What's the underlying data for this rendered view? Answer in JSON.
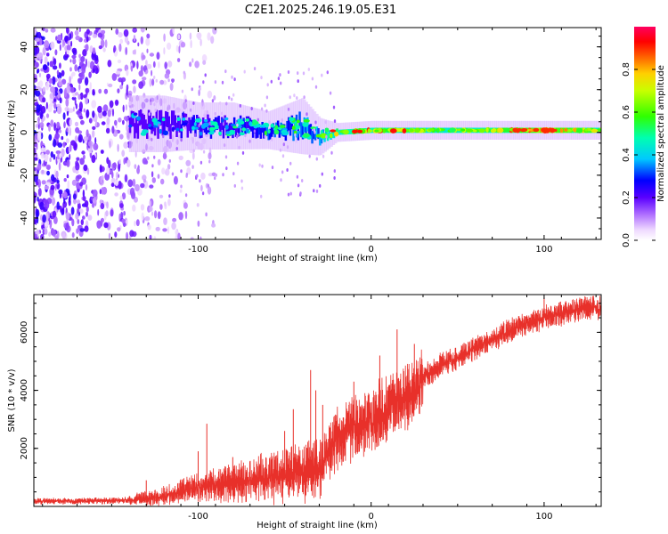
{
  "title": "C2E1.2025.246.19.05.E31",
  "chart_data": [
    {
      "type": "heatmap",
      "name": "spectrogram",
      "xlabel": "Height of straight line (km)",
      "ylabel": "Frequency (Hz)",
      "xlim": [
        -195,
        133
      ],
      "ylim": [
        -50,
        49
      ],
      "xticks": [
        -100,
        0,
        100
      ],
      "yticks": [
        -40,
        -20,
        0,
        20,
        40
      ],
      "noise_floor_region": [
        -195,
        -130
      ],
      "signal_band": [
        {
          "x": -140,
          "center_hz": 4,
          "halfwidth_hz": 6,
          "amp": 0.25
        },
        {
          "x": -120,
          "center_hz": 4,
          "halfwidth_hz": 6,
          "amp": 0.3
        },
        {
          "x": -100,
          "center_hz": 3,
          "halfwidth_hz": 5,
          "amp": 0.32
        },
        {
          "x": -80,
          "center_hz": 3,
          "halfwidth_hz": 5,
          "amp": 0.35
        },
        {
          "x": -60,
          "center_hz": 1,
          "halfwidth_hz": 4,
          "amp": 0.4
        },
        {
          "x": -40,
          "center_hz": 3,
          "halfwidth_hz": 6,
          "amp": 0.42
        },
        {
          "x": -30,
          "center_hz": -2,
          "halfwidth_hz": 4,
          "amp": 0.45
        },
        {
          "x": -20,
          "center_hz": 0,
          "halfwidth_hz": 2,
          "amp": 0.6
        },
        {
          "x": 0,
          "center_hz": 1,
          "halfwidth_hz": 2,
          "amp": 0.6
        },
        {
          "x": 40,
          "center_hz": 1,
          "halfwidth_hz": 2,
          "amp": 0.55
        },
        {
          "x": 80,
          "center_hz": 1,
          "halfwidth_hz": 2,
          "amp": 0.6
        },
        {
          "x": 100,
          "center_hz": 1,
          "halfwidth_hz": 2,
          "amp": 0.75
        },
        {
          "x": 133,
          "center_hz": 1,
          "halfwidth_hz": 2,
          "amp": 0.55
        }
      ],
      "colorbar": {
        "label": "Normalized spectral amplitude",
        "range": [
          0,
          1
        ],
        "ticks": [
          "0.0",
          "0.2",
          "0.4",
          "0.6",
          "0.8"
        ],
        "tick_values": [
          0.0,
          0.2,
          0.4,
          0.6,
          0.8
        ]
      }
    },
    {
      "type": "line",
      "name": "snr",
      "xlabel": "Height of straight line (km)",
      "ylabel": "SNR (10 * v/v)",
      "xlim": [
        -195,
        133
      ],
      "ylim": [
        0,
        7300
      ],
      "xticks": [
        -100,
        0,
        100
      ],
      "yticks": [
        2000,
        4000,
        6000
      ],
      "line_color": "#e8302a",
      "series": [
        {
          "name": "SNR",
          "x": [
            -195,
            -170,
            -150,
            -140,
            -130,
            -120,
            -110,
            -100,
            -90,
            -80,
            -70,
            -60,
            -50,
            -40,
            -30,
            -25,
            -22,
            -20,
            -15,
            -10,
            -5,
            0,
            5,
            10,
            15,
            20,
            25,
            30,
            40,
            50,
            60,
            70,
            80,
            90,
            100,
            110,
            120,
            133
          ],
          "values": [
            200,
            200,
            210,
            240,
            300,
            400,
            550,
            700,
            800,
            900,
            1000,
            1100,
            1200,
            1300,
            1450,
            2000,
            2300,
            2600,
            2800,
            2900,
            3000,
            3100,
            3300,
            3500,
            3700,
            3900,
            4200,
            4500,
            4900,
            5200,
            5500,
            5800,
            6100,
            6400,
            6550,
            6700,
            6850,
            6900
          ]
        }
      ],
      "spikes": [
        {
          "x": -130,
          "value": 900
        },
        {
          "x": -100,
          "value": 1900
        },
        {
          "x": -95,
          "value": 2850
        },
        {
          "x": -80,
          "value": 1700
        },
        {
          "x": -50,
          "value": 2600
        },
        {
          "x": -45,
          "value": 3350
        },
        {
          "x": -35,
          "value": 4700
        },
        {
          "x": -32,
          "value": 4000
        },
        {
          "x": -28,
          "value": 3500
        },
        {
          "x": -10,
          "value": 4300
        },
        {
          "x": 5,
          "value": 5200
        },
        {
          "x": 15,
          "value": 6100
        },
        {
          "x": 25,
          "value": 5600
        },
        {
          "x": 100,
          "value": 7200
        }
      ]
    }
  ]
}
